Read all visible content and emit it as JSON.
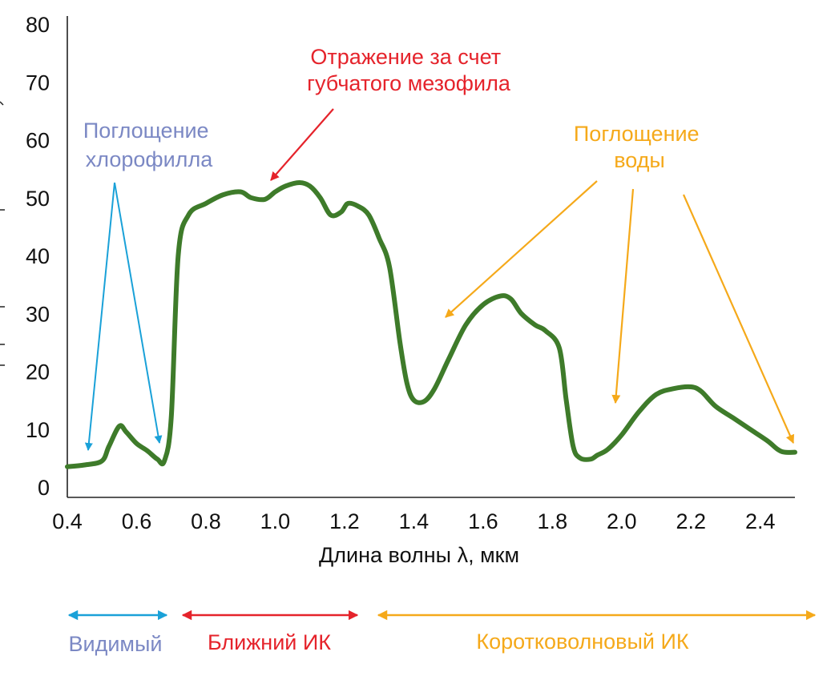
{
  "chart_data": {
    "type": "line",
    "xlabel": "Длина волны λ, мкм",
    "ylabel": "",
    "xlim": [
      0.4,
      2.5
    ],
    "ylim": [
      0,
      80
    ],
    "xticks": [
      "0.4",
      "0.6",
      "0.8",
      "1.0",
      "1.2",
      "1.4",
      "1.6",
      "1.8",
      "2.0",
      "2.2",
      "2.4"
    ],
    "yticks": [
      "0",
      "10",
      "20",
      "30",
      "40",
      "50",
      "60",
      "70",
      "80"
    ],
    "grid": false,
    "series": [
      {
        "color": "#3e7b2a",
        "x": [
          0.4,
          0.45,
          0.5,
          0.52,
          0.55,
          0.57,
          0.6,
          0.63,
          0.66,
          0.68,
          0.7,
          0.72,
          0.75,
          0.8,
          0.85,
          0.9,
          0.93,
          0.97,
          1.0,
          1.03,
          1.07,
          1.1,
          1.13,
          1.16,
          1.19,
          1.21,
          1.24,
          1.27,
          1.3,
          1.33,
          1.36,
          1.38,
          1.4,
          1.43,
          1.46,
          1.5,
          1.55,
          1.6,
          1.65,
          1.68,
          1.71,
          1.75,
          1.78,
          1.82,
          1.84,
          1.86,
          1.88,
          1.91,
          1.93,
          1.96,
          2.0,
          2.05,
          2.1,
          2.15,
          2.2,
          2.23,
          2.27,
          2.32,
          2.37,
          2.42,
          2.45,
          2.47,
          2.5
        ],
        "y": [
          3.5,
          3.8,
          4.5,
          7.0,
          10.5,
          9.5,
          7.5,
          6.3,
          4.8,
          4.5,
          12,
          40,
          47,
          49,
          50.5,
          51,
          50,
          49.7,
          51,
          52,
          52.6,
          52,
          50,
          47,
          47.5,
          49,
          48.5,
          47,
          43,
          38,
          25,
          18,
          15,
          14.8,
          17,
          22,
          28,
          31.5,
          33,
          32.5,
          30,
          28,
          27,
          24,
          15,
          7,
          5,
          4.8,
          5.5,
          6.5,
          9,
          13,
          16,
          17,
          17.3,
          16.5,
          14,
          12,
          10,
          8,
          6.5,
          6.0,
          6.0
        ]
      }
    ],
    "annotations": [
      {
        "text": [
          "Поглощение",
          "хлорофилла"
        ],
        "color": "#7b88c4"
      },
      {
        "text": [
          "Отражение за счет",
          "губчатого мезофила"
        ],
        "color": "#e5232b"
      },
      {
        "text": [
          "Поглощение",
          "воды"
        ],
        "color": "#f5a91a"
      }
    ],
    "regions": [
      {
        "label": "Видимый",
        "color": "#7b88c4",
        "arrow_color": "#1aa1d8"
      },
      {
        "label": "Ближний ИК",
        "color": "#e5232b",
        "arrow_color": "#e5232b"
      },
      {
        "label": "Коротковолновый ИК",
        "color": "#f5a91a",
        "arrow_color": "#f5a91a"
      }
    ]
  }
}
